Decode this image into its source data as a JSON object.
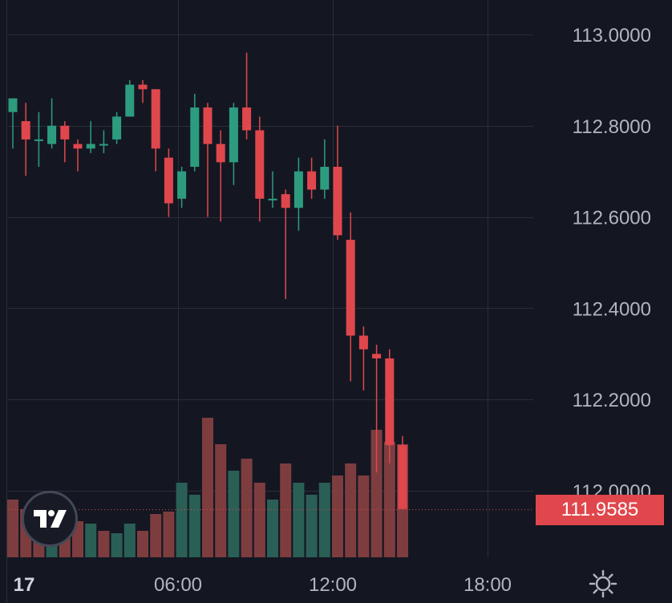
{
  "chart_data": {
    "type": "candlestick",
    "y_axis": {
      "ticks": [
        "113.0000",
        "112.8000",
        "112.6000",
        "112.4000",
        "112.2000",
        "112.0000"
      ],
      "range": [
        111.86,
        113.07
      ]
    },
    "x_axis": {
      "ticks": [
        "17",
        "06:00",
        "12:00",
        "18:00"
      ]
    },
    "current_price": "111.9585",
    "current_price_value": 111.9585,
    "candles": [
      {
        "o": 112.83,
        "h": 112.86,
        "l": 112.75,
        "c": 112.86
      },
      {
        "o": 112.81,
        "h": 112.85,
        "l": 112.69,
        "c": 112.77
      },
      {
        "o": 112.77,
        "h": 112.83,
        "l": 112.71,
        "c": 112.77
      },
      {
        "o": 112.76,
        "h": 112.86,
        "l": 112.75,
        "c": 112.8
      },
      {
        "o": 112.8,
        "h": 112.81,
        "l": 112.72,
        "c": 112.77
      },
      {
        "o": 112.76,
        "h": 112.77,
        "l": 112.7,
        "c": 112.75
      },
      {
        "o": 112.75,
        "h": 112.81,
        "l": 112.74,
        "c": 112.76
      },
      {
        "o": 112.76,
        "h": 112.79,
        "l": 112.74,
        "c": 112.76
      },
      {
        "o": 112.77,
        "h": 112.83,
        "l": 112.76,
        "c": 112.82
      },
      {
        "o": 112.82,
        "h": 112.9,
        "l": 112.82,
        "c": 112.89
      },
      {
        "o": 112.89,
        "h": 112.9,
        "l": 112.85,
        "c": 112.88
      },
      {
        "o": 112.88,
        "h": 112.88,
        "l": 112.7,
        "c": 112.75
      },
      {
        "o": 112.73,
        "h": 112.75,
        "l": 112.6,
        "c": 112.63
      },
      {
        "o": 112.64,
        "h": 112.71,
        "l": 112.62,
        "c": 112.7
      },
      {
        "o": 112.71,
        "h": 112.87,
        "l": 112.7,
        "c": 112.84
      },
      {
        "o": 112.84,
        "h": 112.85,
        "l": 112.6,
        "c": 112.76
      },
      {
        "o": 112.76,
        "h": 112.79,
        "l": 112.59,
        "c": 112.72
      },
      {
        "o": 112.72,
        "h": 112.85,
        "l": 112.67,
        "c": 112.84
      },
      {
        "o": 112.84,
        "h": 112.96,
        "l": 112.77,
        "c": 112.79
      },
      {
        "o": 112.79,
        "h": 112.82,
        "l": 112.59,
        "c": 112.64
      },
      {
        "o": 112.64,
        "h": 112.7,
        "l": 112.62,
        "c": 112.64
      },
      {
        "o": 112.65,
        "h": 112.66,
        "l": 112.42,
        "c": 112.62
      },
      {
        "o": 112.62,
        "h": 112.73,
        "l": 112.57,
        "c": 112.7
      },
      {
        "o": 112.7,
        "h": 112.73,
        "l": 112.64,
        "c": 112.66
      },
      {
        "o": 112.66,
        "h": 112.77,
        "l": 112.64,
        "c": 112.71
      },
      {
        "o": 112.71,
        "h": 112.8,
        "l": 112.55,
        "c": 112.56
      },
      {
        "o": 112.55,
        "h": 112.61,
        "l": 112.24,
        "c": 112.34
      },
      {
        "o": 112.34,
        "h": 112.36,
        "l": 112.22,
        "c": 112.31
      },
      {
        "o": 112.3,
        "h": 112.32,
        "l": 112.04,
        "c": 112.29
      },
      {
        "o": 112.29,
        "h": 112.31,
        "l": 112.06,
        "c": 112.1
      },
      {
        "o": 112.1,
        "h": 112.12,
        "l": 111.96,
        "c": 111.96
      }
    ],
    "volume": [
      {
        "v": 0.24,
        "up": false
      },
      {
        "v": 0.2,
        "up": false
      },
      {
        "v": 0.2,
        "up": false
      },
      {
        "v": 0.12,
        "up": true
      },
      {
        "v": 0.16,
        "up": false
      },
      {
        "v": 0.15,
        "up": false
      },
      {
        "v": 0.14,
        "up": true
      },
      {
        "v": 0.11,
        "up": false
      },
      {
        "v": 0.1,
        "up": true
      },
      {
        "v": 0.14,
        "up": true
      },
      {
        "v": 0.11,
        "up": false
      },
      {
        "v": 0.18,
        "up": false
      },
      {
        "v": 0.19,
        "up": false
      },
      {
        "v": 0.31,
        "up": true
      },
      {
        "v": 0.26,
        "up": true
      },
      {
        "v": 0.58,
        "up": false
      },
      {
        "v": 0.47,
        "up": false
      },
      {
        "v": 0.36,
        "up": true
      },
      {
        "v": 0.41,
        "up": false
      },
      {
        "v": 0.31,
        "up": false
      },
      {
        "v": 0.24,
        "up": true
      },
      {
        "v": 0.39,
        "up": false
      },
      {
        "v": 0.31,
        "up": true
      },
      {
        "v": 0.26,
        "up": true
      },
      {
        "v": 0.31,
        "up": true
      },
      {
        "v": 0.34,
        "up": false
      },
      {
        "v": 0.39,
        "up": false
      },
      {
        "v": 0.34,
        "up": false
      },
      {
        "v": 0.53,
        "up": false
      },
      {
        "v": 0.48,
        "up": false
      },
      {
        "v": 0.47,
        "up": false
      }
    ],
    "colors": {
      "up": "#2d9c7e",
      "down": "#e0474c",
      "up_volume": "#2a5f56",
      "down_volume": "#7d3d3f",
      "background": "#141722",
      "grid": "#2a2e39",
      "axis_text": "#b2b5be"
    },
    "grid": true
  },
  "icons": {
    "logo": "tradingview-logo-icon",
    "settings": "gear-icon"
  }
}
